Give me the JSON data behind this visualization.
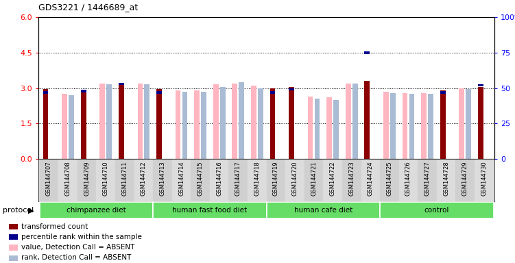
{
  "title": "GDS3221 / 1446689_at",
  "samples": [
    "GSM144707",
    "GSM144708",
    "GSM144709",
    "GSM144710",
    "GSM144711",
    "GSM144712",
    "GSM144713",
    "GSM144714",
    "GSM144715",
    "GSM144716",
    "GSM144717",
    "GSM144718",
    "GSM144719",
    "GSM144720",
    "GSM144721",
    "GSM144722",
    "GSM144723",
    "GSM144724",
    "GSM144725",
    "GSM144726",
    "GSM144727",
    "GSM144728",
    "GSM144729",
    "GSM144730"
  ],
  "transformed_count": [
    2.95,
    null,
    2.85,
    null,
    3.15,
    null,
    2.95,
    null,
    null,
    null,
    null,
    null,
    3.0,
    3.05,
    null,
    null,
    null,
    3.3,
    null,
    null,
    null,
    2.9,
    null,
    3.05
  ],
  "percentile_rank": [
    47,
    null,
    48,
    null,
    53,
    null,
    47,
    null,
    null,
    null,
    null,
    null,
    47,
    49,
    null,
    null,
    null,
    75,
    null,
    null,
    null,
    47,
    null,
    52
  ],
  "value_absent": [
    null,
    2.75,
    null,
    3.2,
    null,
    3.2,
    null,
    2.9,
    2.9,
    3.15,
    3.2,
    3.1,
    null,
    null,
    2.65,
    2.6,
    3.2,
    null,
    2.85,
    2.8,
    2.8,
    null,
    3.0,
    null
  ],
  "rank_absent": [
    null,
    2.7,
    null,
    3.15,
    null,
    3.15,
    null,
    2.85,
    2.85,
    3.05,
    3.25,
    3.0,
    null,
    null,
    2.55,
    2.5,
    3.2,
    null,
    2.8,
    2.75,
    2.75,
    null,
    2.95,
    null
  ],
  "protocols": [
    {
      "label": "chimpanzee diet",
      "start": 0,
      "end": 6
    },
    {
      "label": "human fast food diet",
      "start": 6,
      "end": 12
    },
    {
      "label": "human cafe diet",
      "start": 12,
      "end": 18
    },
    {
      "label": "control",
      "start": 18,
      "end": 24
    }
  ],
  "ylim_left": [
    0,
    6
  ],
  "ylim_right": [
    0,
    100
  ],
  "yticks_left": [
    0,
    1.5,
    3.0,
    4.5,
    6.0
  ],
  "yticks_right": [
    0,
    25,
    50,
    75,
    100
  ],
  "color_red": "#8B0000",
  "color_blue": "#00008B",
  "color_pink": "#FFB6C1",
  "color_lightblue": "#AABBD4",
  "color_protocol": "#66DD66",
  "color_xbg": "#D8D8D8"
}
